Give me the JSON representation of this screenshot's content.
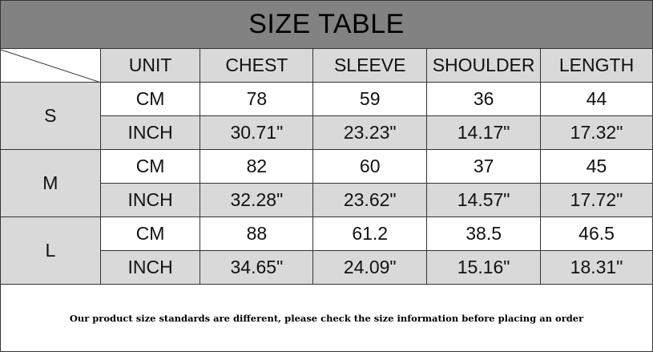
{
  "title": "SIZE TABLE",
  "headers": [
    "UNIT",
    "CHEST",
    "SLEEVE",
    "SHOULDER",
    "LENGTH"
  ],
  "sizes": [
    {
      "size": "S",
      "rows": [
        [
          "CM",
          "78",
          "59",
          "36",
          "44"
        ],
        [
          "INCH",
          "30.71\"",
          "23.23\"",
          "14.17\"",
          "17.32\""
        ]
      ]
    },
    {
      "size": "M",
      "rows": [
        [
          "CM",
          "82",
          "60",
          "37",
          "45"
        ],
        [
          "INCH",
          "32.28\"",
          "23.62\"",
          "14.57\"",
          "17.72\""
        ]
      ]
    },
    {
      "size": "L",
      "rows": [
        [
          "CM",
          "88",
          "61.2",
          "38.5",
          "46.5"
        ],
        [
          "INCH",
          "34.65\"",
          "24.09\"",
          "15.16\"",
          "18.31\""
        ]
      ]
    }
  ],
  "footer": "Our product size standards are different, please check the size information before placing an order",
  "colors": {
    "title_bg": "#828282",
    "cell_gray": "#d9d9d9"
  }
}
